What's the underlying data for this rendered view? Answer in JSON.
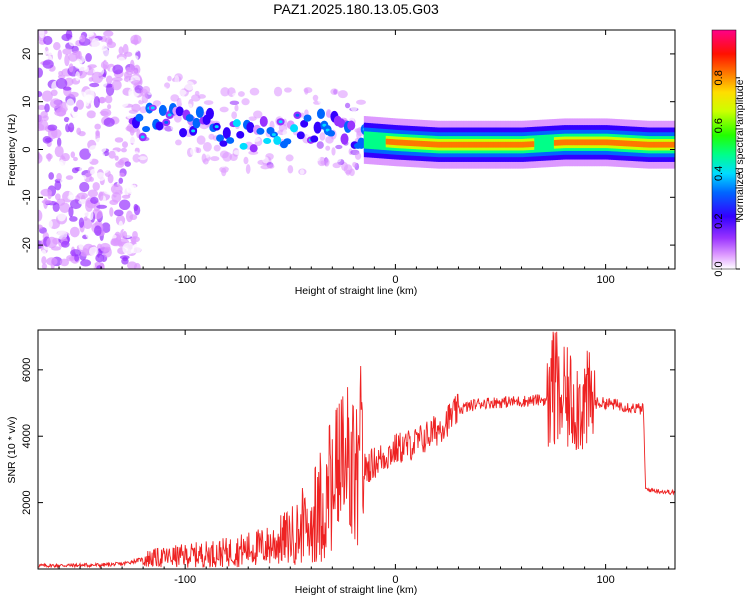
{
  "title": "PAZ1.2025.180.13.05.G03",
  "chart_data": [
    {
      "type": "heatmap",
      "xlabel": "Height of straight line (km)",
      "ylabel": "Frequency (Hz)",
      "xlim": [
        -170,
        133
      ],
      "ylim": [
        -25,
        25
      ],
      "xticks": [
        -100,
        0,
        100
      ],
      "yticks": [
        -20,
        -10,
        0,
        10,
        20
      ],
      "colorbar": {
        "label": "Normalized spectral amplitude",
        "range": [
          0,
          1
        ],
        "ticks": [
          "0.0",
          "0.2",
          "0.4",
          "0.6",
          "0.8"
        ],
        "colors": [
          "#ffffff",
          "#cc66ff",
          "#6600ff",
          "#0000ff",
          "#00ccff",
          "#00ff66",
          "#66ff00",
          "#ffff00",
          "#ff8800",
          "#ff0000",
          "#ff0066"
        ]
      },
      "ridge": {
        "note_points_x": [
          -170,
          -150,
          -130,
          -110,
          -90,
          -70,
          -50,
          -30,
          -15,
          0,
          20,
          40,
          60,
          80,
          100,
          120,
          133
        ],
        "center_y": [
          0,
          0,
          4,
          7,
          5,
          3,
          4,
          5,
          2,
          1.5,
          1,
          1,
          1,
          1.5,
          1.5,
          1,
          1
        ]
      }
    },
    {
      "type": "line",
      "xlabel": "Height of straight line (km)",
      "ylabel": "SNR (10 * v/v)",
      "xlim": [
        -170,
        133
      ],
      "ylim": [
        0,
        7200
      ],
      "xticks": [
        -100,
        0,
        100
      ],
      "yticks": [
        2000,
        4000,
        6000
      ],
      "color": "#ee2222",
      "envelope_x": [
        -170,
        -140,
        -130,
        -120,
        -100,
        -80,
        -60,
        -40,
        -30,
        -20,
        -10,
        0,
        10,
        20,
        30,
        40,
        60,
        70,
        75,
        80,
        90,
        100,
        110,
        118,
        119,
        125,
        133
      ],
      "envelope_y": [
        100,
        120,
        150,
        300,
        400,
        500,
        700,
        1300,
        2200,
        2800,
        3200,
        3600,
        3800,
        4200,
        4800,
        5000,
        5050,
        5100,
        5000,
        5100,
        5000,
        5000,
        4900,
        4800,
        2400,
        2350,
        2300
      ]
    }
  ]
}
